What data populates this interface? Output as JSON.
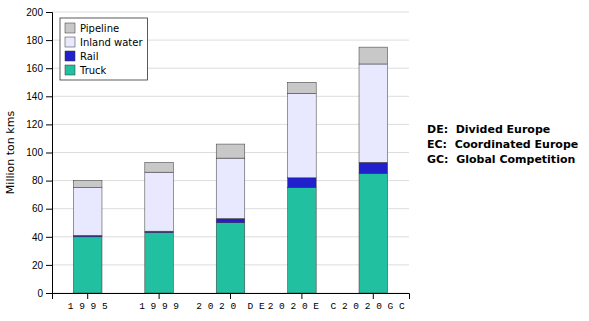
{
  "chart_data": {
    "type": "bar",
    "stacked": true,
    "categories": [
      "1 9 9 5",
      "1 9 9 9",
      "2 0 2 0  D E",
      "2 0 2 0 E  C",
      "2 0 2 0 G C"
    ],
    "series": [
      {
        "name": "Truck",
        "color": "#20C0A0",
        "values": [
          40,
          43,
          50,
          75,
          85
        ]
      },
      {
        "name": "Rail",
        "color": "#2020CC",
        "values": [
          1,
          1,
          3,
          7,
          8
        ]
      },
      {
        "name": "Inland water",
        "color": "#e8e8ff",
        "values": [
          34,
          42,
          43,
          60,
          70
        ]
      },
      {
        "name": "Pipeline",
        "color": "#c8c8c8",
        "values": [
          5,
          7,
          10,
          8,
          12
        ]
      }
    ],
    "ylabel": "Million ton kms",
    "ylim": [
      0,
      200
    ],
    "yticks": [
      0,
      20,
      40,
      60,
      80,
      100,
      120,
      140,
      160,
      180,
      200
    ],
    "grid": true,
    "legend": "upper-left",
    "annotation": "DE:  Divided Europe\nEC:  Coordinated Europe\nGC:  Global Competition"
  }
}
